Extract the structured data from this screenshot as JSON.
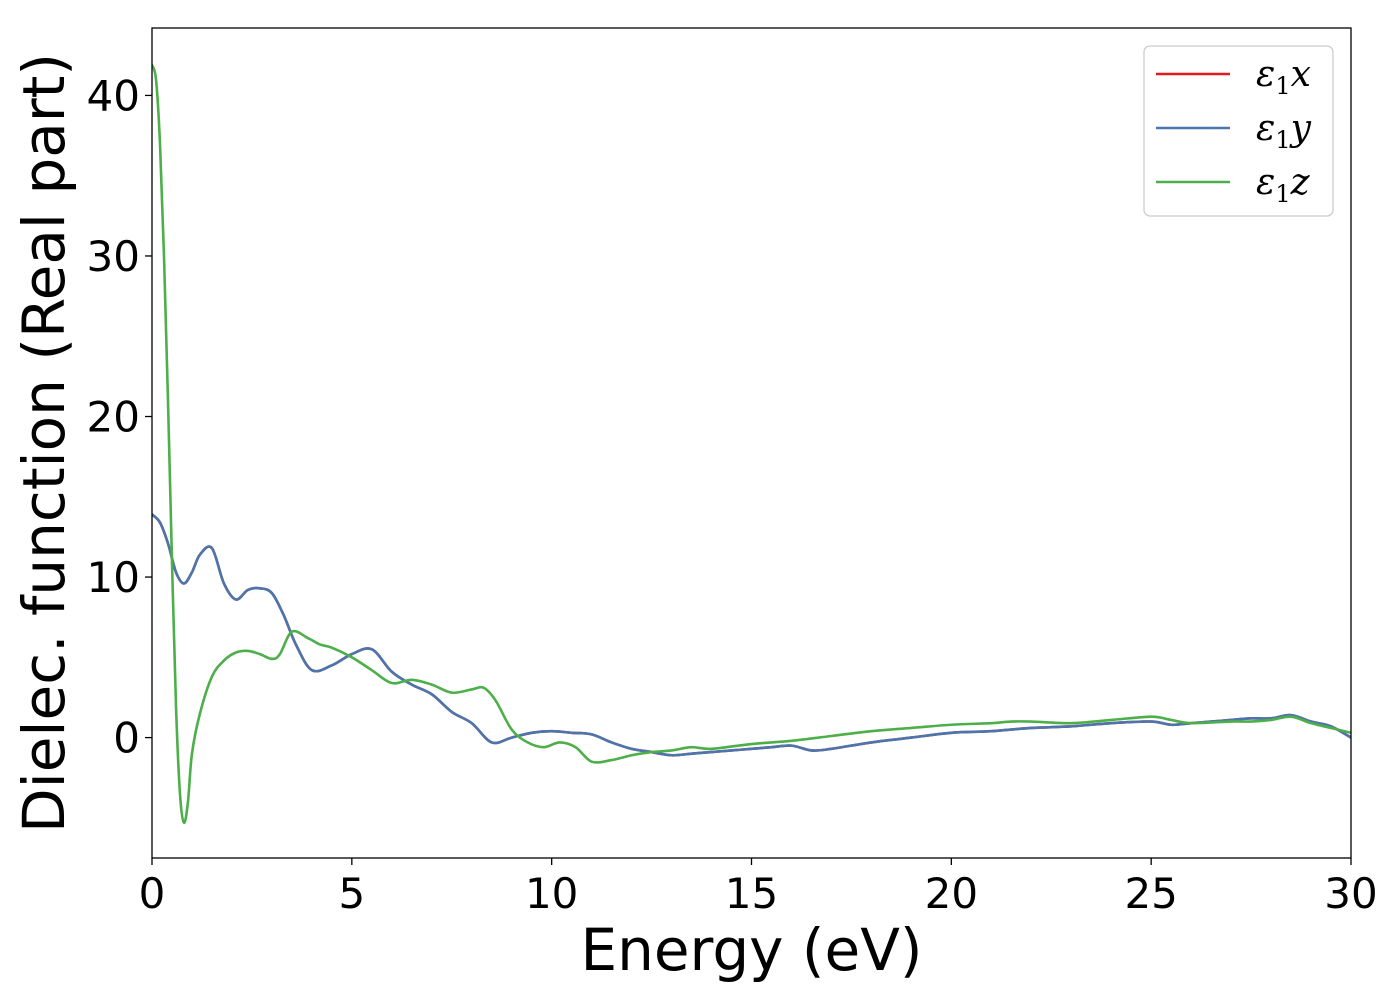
{
  "chart_data": {
    "type": "line",
    "title": "",
    "xlabel": "Energy (eV)",
    "ylabel": "Dielec. function (Real part)",
    "xlim": [
      0,
      30
    ],
    "ylim": [
      -7.5,
      44.2
    ],
    "xticks": [
      0,
      5,
      10,
      15,
      20,
      25,
      30
    ],
    "yticks": [
      0,
      10,
      20,
      30,
      40
    ],
    "grid": false,
    "legend_position": "top-right",
    "series": [
      {
        "name": "ε1x",
        "legend_base": "ε",
        "legend_sub": "1",
        "legend_var": "x",
        "color": "#e41a1c",
        "x": [
          0,
          0.2,
          0.4,
          0.6,
          0.8,
          1.0,
          1.2,
          1.5,
          1.8,
          2.1,
          2.4,
          2.7,
          3.0,
          3.3,
          3.6,
          4.0,
          4.5,
          5.0,
          5.5,
          6.0,
          6.5,
          7.0,
          7.5,
          8.0,
          8.5,
          9.0,
          9.5,
          10.0,
          10.5,
          11.0,
          11.5,
          12.0,
          12.5,
          13.0,
          13.5,
          14.0,
          14.5,
          15.0,
          15.5,
          16.0,
          16.5,
          17.0,
          18.0,
          19.0,
          20.0,
          21.0,
          22.0,
          23.0,
          24.0,
          25.0,
          25.5,
          26.0,
          26.5,
          27.0,
          27.5,
          28.0,
          28.5,
          29.0,
          29.5,
          30.0
        ],
        "y": [
          13.9,
          13.4,
          12.1,
          10.3,
          9.6,
          10.3,
          11.4,
          11.8,
          9.6,
          8.6,
          9.2,
          9.3,
          9.0,
          7.6,
          5.8,
          4.2,
          4.5,
          5.2,
          5.5,
          4.1,
          3.3,
          2.7,
          1.6,
          0.9,
          -0.3,
          0.0,
          0.3,
          0.4,
          0.3,
          0.2,
          -0.3,
          -0.7,
          -0.9,
          -1.1,
          -1.0,
          -0.9,
          -0.8,
          -0.7,
          -0.6,
          -0.5,
          -0.8,
          -0.7,
          -0.3,
          0.0,
          0.3,
          0.4,
          0.6,
          0.7,
          0.9,
          1.0,
          0.8,
          0.9,
          1.0,
          1.1,
          1.2,
          1.2,
          1.4,
          1.0,
          0.7,
          0.0
        ]
      },
      {
        "name": "ε1y",
        "legend_base": "ε",
        "legend_sub": "1",
        "legend_var": "y",
        "color": "#4a76ae",
        "x": [
          0,
          0.2,
          0.4,
          0.6,
          0.8,
          1.0,
          1.2,
          1.5,
          1.8,
          2.1,
          2.4,
          2.7,
          3.0,
          3.3,
          3.6,
          4.0,
          4.5,
          5.0,
          5.5,
          6.0,
          6.5,
          7.0,
          7.5,
          8.0,
          8.5,
          9.0,
          9.5,
          10.0,
          10.5,
          11.0,
          11.5,
          12.0,
          12.5,
          13.0,
          13.5,
          14.0,
          14.5,
          15.0,
          15.5,
          16.0,
          16.5,
          17.0,
          18.0,
          19.0,
          20.0,
          21.0,
          22.0,
          23.0,
          24.0,
          25.0,
          25.5,
          26.0,
          26.5,
          27.0,
          27.5,
          28.0,
          28.5,
          29.0,
          29.5,
          30.0
        ],
        "y": [
          13.9,
          13.4,
          12.1,
          10.3,
          9.6,
          10.3,
          11.4,
          11.8,
          9.6,
          8.6,
          9.2,
          9.3,
          9.0,
          7.6,
          5.8,
          4.2,
          4.5,
          5.2,
          5.5,
          4.1,
          3.3,
          2.7,
          1.6,
          0.9,
          -0.3,
          0.0,
          0.3,
          0.4,
          0.3,
          0.2,
          -0.3,
          -0.7,
          -0.9,
          -1.1,
          -1.0,
          -0.9,
          -0.8,
          -0.7,
          -0.6,
          -0.5,
          -0.8,
          -0.7,
          -0.3,
          0.0,
          0.3,
          0.4,
          0.6,
          0.7,
          0.9,
          1.0,
          0.8,
          0.9,
          1.0,
          1.1,
          1.2,
          1.2,
          1.4,
          1.0,
          0.7,
          0.0
        ]
      },
      {
        "name": "ε1z",
        "legend_base": "ε",
        "legend_sub": "1",
        "legend_var": "z",
        "color": "#4daf4a",
        "x": [
          0,
          0.1,
          0.2,
          0.3,
          0.4,
          0.5,
          0.6,
          0.7,
          0.8,
          0.9,
          1.0,
          1.2,
          1.5,
          1.8,
          2.1,
          2.4,
          2.7,
          3.0,
          3.2,
          3.5,
          3.9,
          4.2,
          4.5,
          5.0,
          5.5,
          6.0,
          6.5,
          7.0,
          7.5,
          8.0,
          8.3,
          8.6,
          9.0,
          9.4,
          9.8,
          10.2,
          10.6,
          11.0,
          11.5,
          12.0,
          12.5,
          13.0,
          13.5,
          14.0,
          15.0,
          16.0,
          17.0,
          18.0,
          19.0,
          20.0,
          21.0,
          21.5,
          22.0,
          23.0,
          24.0,
          25.0,
          25.5,
          26.0,
          27.0,
          27.5,
          28.0,
          28.5,
          29.0,
          29.5,
          30.0
        ],
        "y": [
          41.9,
          41.0,
          37.0,
          30.0,
          21.0,
          11.0,
          2.0,
          -3.5,
          -5.3,
          -4.0,
          -1.0,
          1.5,
          3.8,
          4.8,
          5.3,
          5.4,
          5.2,
          4.9,
          5.2,
          6.6,
          6.2,
          5.8,
          5.6,
          5.0,
          4.2,
          3.4,
          3.6,
          3.3,
          2.8,
          3.0,
          3.1,
          2.3,
          0.5,
          -0.3,
          -0.6,
          -0.3,
          -0.6,
          -1.5,
          -1.4,
          -1.1,
          -0.9,
          -0.8,
          -0.6,
          -0.7,
          -0.4,
          -0.2,
          0.1,
          0.4,
          0.6,
          0.8,
          0.9,
          1.0,
          1.0,
          0.9,
          1.1,
          1.3,
          1.1,
          0.9,
          1.0,
          1.0,
          1.1,
          1.3,
          0.9,
          0.6,
          0.3
        ]
      }
    ]
  }
}
